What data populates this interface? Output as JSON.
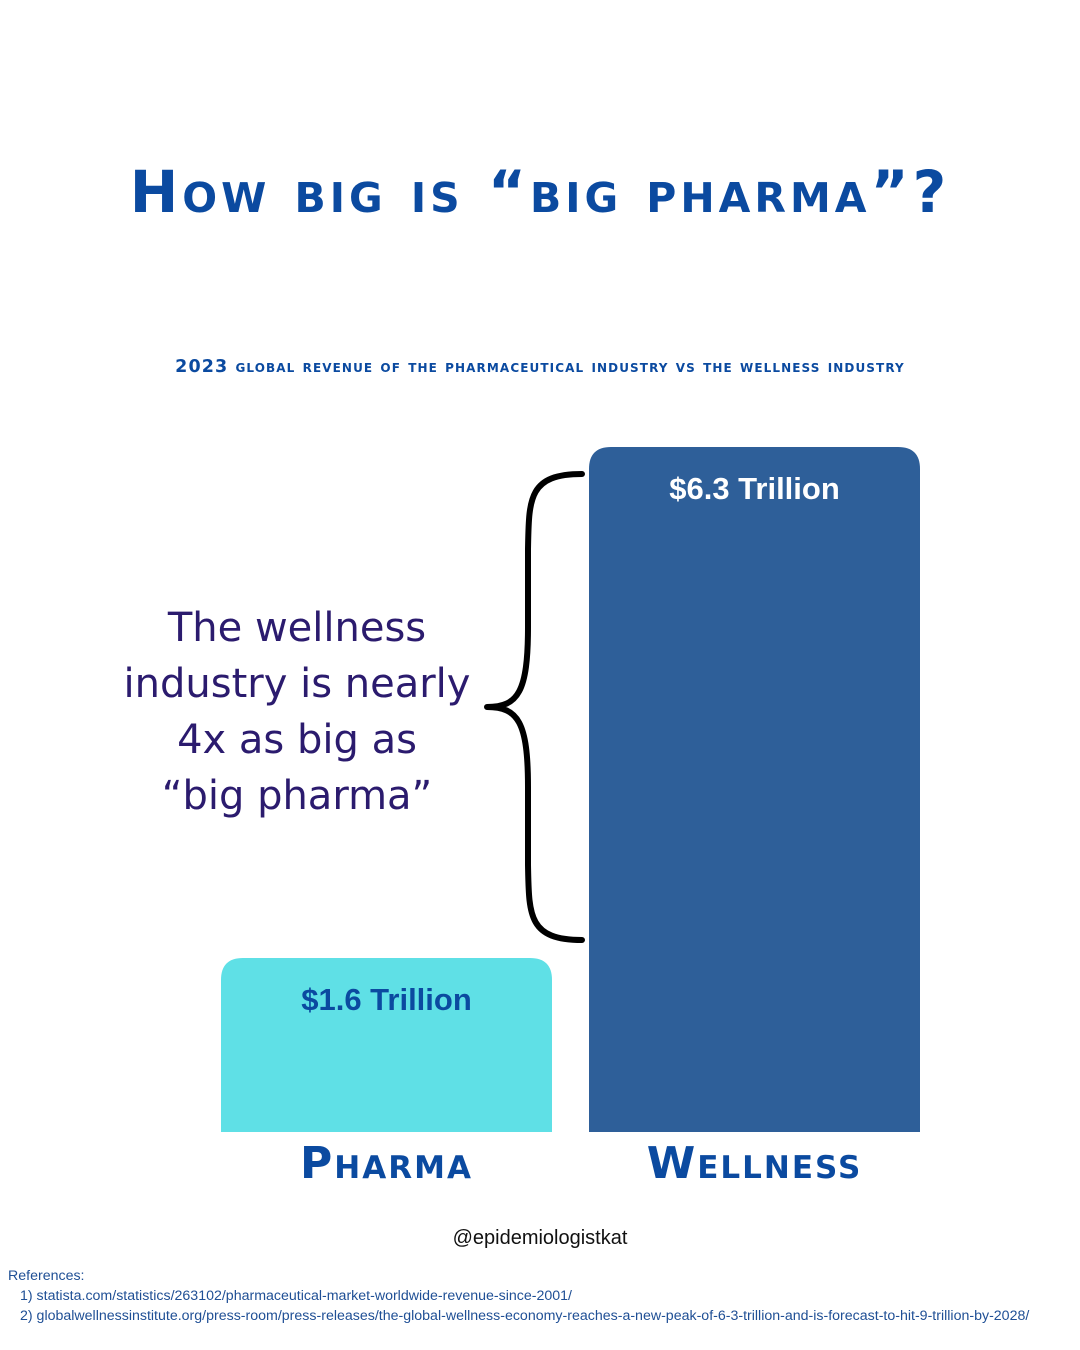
{
  "header": {
    "title": "How big is “big pharma”?",
    "subtitle": "2023 global revenue of the pharmaceutical industry vs the wellness industry"
  },
  "annotation": {
    "lines": [
      "The wellness",
      "industry is nearly",
      "4x as big as",
      "“big pharma”"
    ]
  },
  "chart_data": {
    "type": "bar",
    "title": "How big is “big pharma”?",
    "subtitle": "2023 global revenue of the pharmaceutical industry vs the wellness industry",
    "categories": [
      "Pharma",
      "Wellness"
    ],
    "values": [
      1.6,
      6.3
    ],
    "unit": "Trillion",
    "data_labels": [
      "$1.6 Trillion",
      "$6.3 Trillion"
    ],
    "colors": [
      "#5fe0e6",
      "#2e5f99"
    ],
    "label_colors": [
      "#0b4aa0",
      "#ffffff"
    ],
    "category_color": "#0b4aa0",
    "ylim": [
      0,
      6.3
    ],
    "grid": false,
    "legend": "none",
    "annotation": "The wellness industry is nearly 4x as big as “big pharma”"
  },
  "footer": {
    "handle": "@epidemiologistkat",
    "references_label": "References:",
    "references": [
      "1) statista.com/statistics/263102/pharmaceutical-market-worldwide-revenue-since-2001/",
      "2) globalwellnessinstitute.org/press-room/press-releases/the-global-wellness-economy-reaches-a-new-peak-of-6-3-trillion-and-is-forecast-to-hit-9-trillion-by-2028/"
    ]
  }
}
